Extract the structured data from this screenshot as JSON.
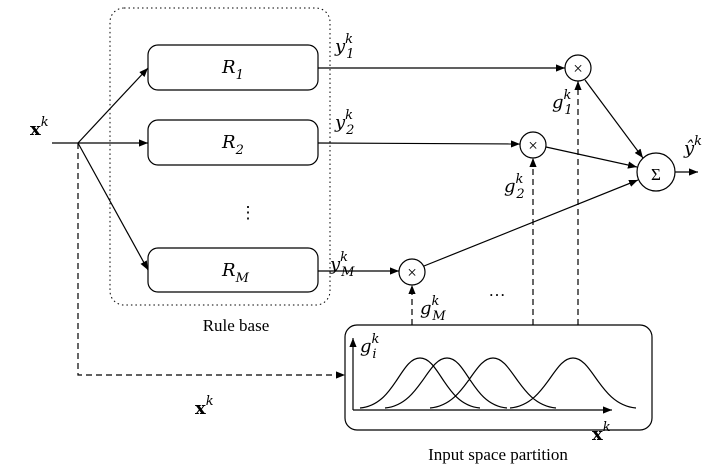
{
  "input": {
    "symbol": "x",
    "sup": "k"
  },
  "rules": [
    {
      "symbol": "R",
      "sub": "1"
    },
    {
      "symbol": "R",
      "sub": "2"
    },
    {
      "symbol": "R",
      "sub": "M"
    }
  ],
  "rule_ellipsis": "⋮",
  "rule_base_label": "Rule base",
  "rule_outputs": [
    {
      "symbol": "y",
      "sub": "1",
      "sup": "k"
    },
    {
      "symbol": "y",
      "sub": "2",
      "sup": "k"
    },
    {
      "symbol": "y",
      "sub": "M",
      "sup": "k"
    }
  ],
  "firing_strengths": [
    {
      "symbol": "g",
      "sub": "1",
      "sup": "k"
    },
    {
      "symbol": "g",
      "sub": "2",
      "sup": "k"
    },
    {
      "symbol": "g",
      "sub": "M",
      "sup": "k"
    }
  ],
  "multiply_symbol": "×",
  "ellipsis": "…",
  "sum_symbol": "Σ",
  "output": {
    "symbol": "ŷ",
    "sup": "k"
  },
  "lower_input": {
    "symbol": "x",
    "sup": "k"
  },
  "partition": {
    "label": "Input space partition",
    "y_axis": {
      "symbol": "g",
      "sub": "i",
      "sup": "k"
    },
    "x_axis": {
      "symbol": "x",
      "sup": "k"
    }
  }
}
